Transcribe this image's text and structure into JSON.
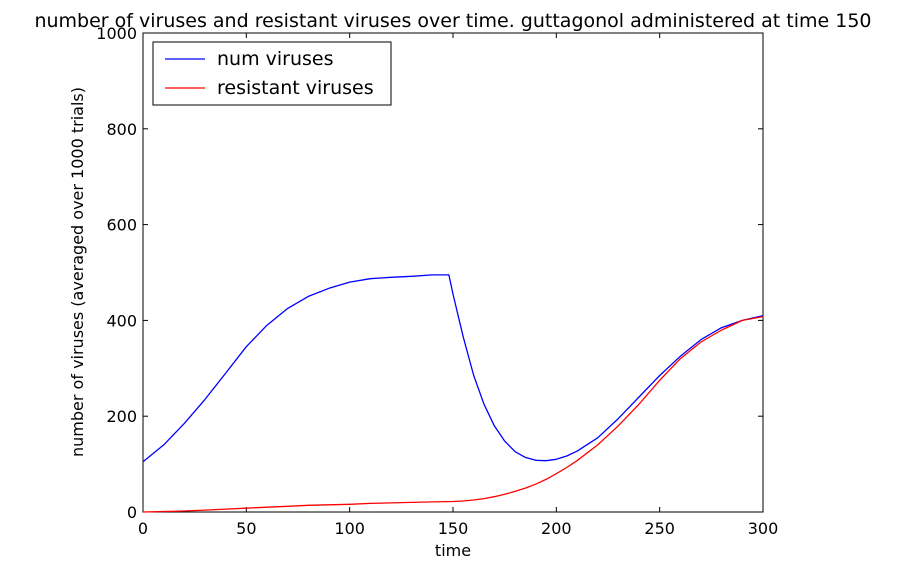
{
  "chart_data": {
    "type": "line",
    "title": "number of viruses and resistant viruses over time. guttagonol administered at time 150",
    "xlabel": "time",
    "ylabel": "number of viruses (averaged over 1000 trials)",
    "xlim": [
      0,
      300
    ],
    "ylim": [
      0,
      1000
    ],
    "x_ticks": [
      0,
      50,
      100,
      150,
      200,
      250,
      300
    ],
    "y_ticks": [
      0,
      200,
      400,
      600,
      800,
      1000
    ],
    "grid": false,
    "legend_position": "upper-left",
    "series": [
      {
        "name": "num viruses",
        "color": "#0000ff",
        "x": [
          0,
          10,
          20,
          30,
          40,
          50,
          60,
          70,
          80,
          90,
          100,
          110,
          120,
          130,
          140,
          148,
          150,
          155,
          160,
          165,
          170,
          175,
          180,
          185,
          190,
          195,
          200,
          205,
          210,
          220,
          230,
          240,
          250,
          260,
          270,
          280,
          290,
          300
        ],
        "y": [
          105,
          140,
          185,
          235,
          290,
          345,
          390,
          425,
          450,
          467,
          480,
          487,
          490,
          492,
          495,
          495,
          455,
          365,
          285,
          225,
          180,
          148,
          126,
          114,
          108,
          107,
          110,
          117,
          127,
          155,
          195,
          240,
          285,
          325,
          360,
          385,
          400,
          410
        ]
      },
      {
        "name": "resistant viruses",
        "color": "#ff0000",
        "x": [
          0,
          10,
          20,
          30,
          40,
          50,
          60,
          70,
          80,
          90,
          100,
          110,
          120,
          130,
          140,
          150,
          155,
          160,
          165,
          170,
          175,
          180,
          185,
          190,
          195,
          200,
          205,
          210,
          220,
          230,
          240,
          250,
          260,
          270,
          280,
          290,
          300
        ],
        "y": [
          0,
          1,
          2,
          4,
          6,
          8,
          10,
          12,
          14,
          15,
          16,
          18,
          19,
          20,
          21,
          22,
          23,
          25,
          28,
          32,
          37,
          43,
          50,
          58,
          68,
          80,
          93,
          107,
          140,
          180,
          225,
          275,
          320,
          355,
          380,
          400,
          408
        ]
      }
    ]
  }
}
